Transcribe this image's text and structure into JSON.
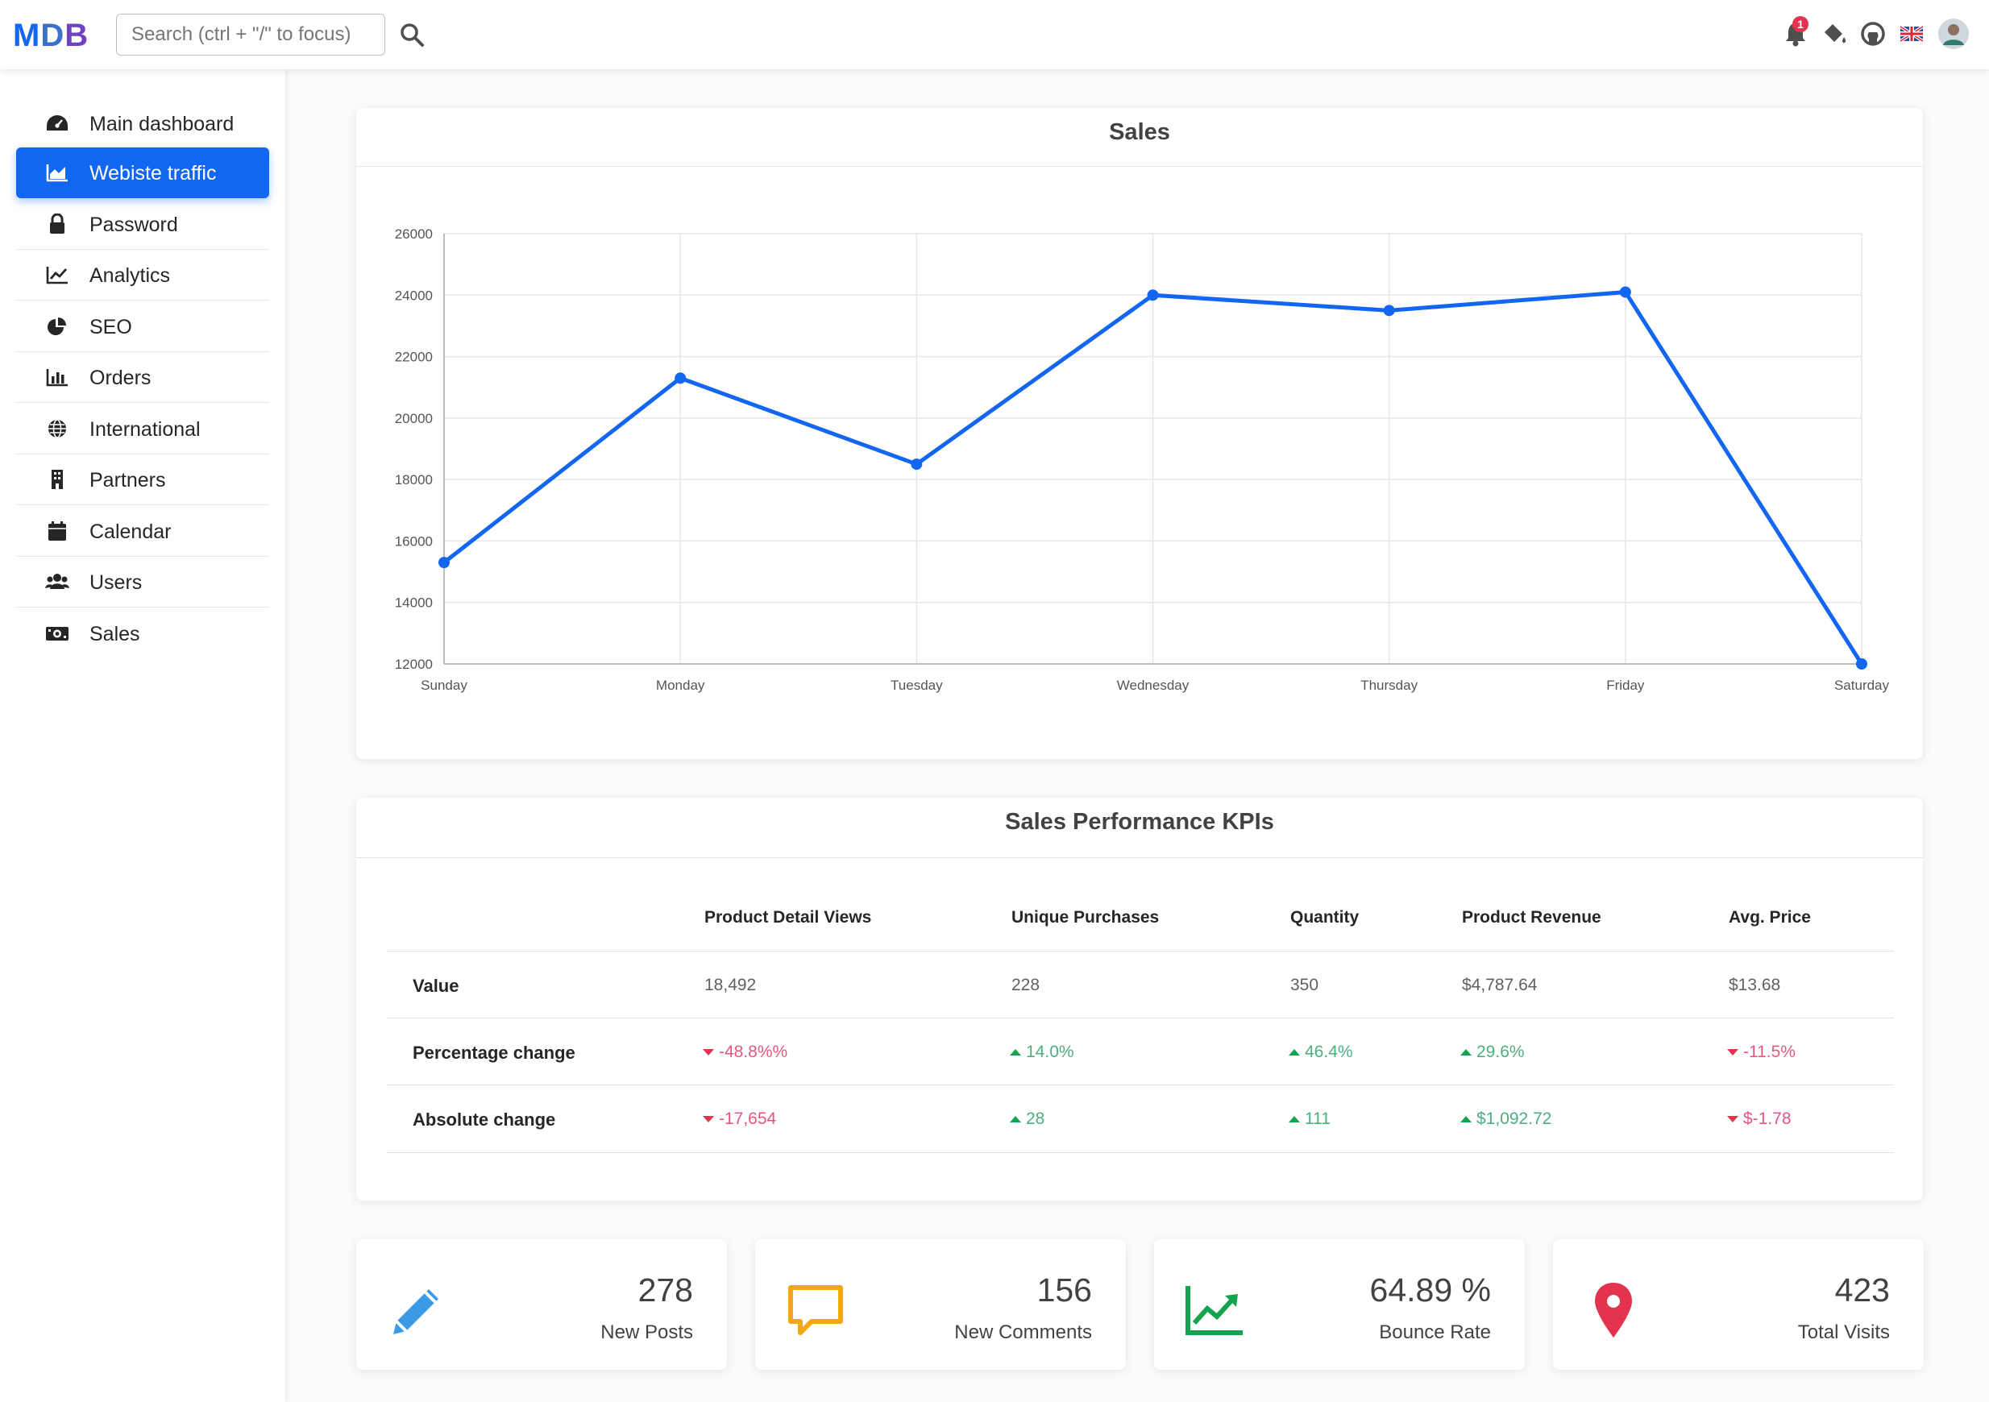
{
  "navbar": {
    "logo": {
      "m": "M",
      "d": "D",
      "b": "B"
    },
    "search_placeholder": "Search (ctrl + \"/\" to focus)",
    "notification_count": "1",
    "icons": [
      "bell-icon",
      "paint-bucket-icon",
      "github-icon",
      "uk-flag-icon",
      "avatar"
    ]
  },
  "sidebar": {
    "items": [
      {
        "label": "Main dashboard",
        "icon": "gauge-icon"
      },
      {
        "label": "Webiste traffic",
        "icon": "area-chart-icon",
        "active": true
      },
      {
        "label": "Password",
        "icon": "lock-icon"
      },
      {
        "label": "Analytics",
        "icon": "line-chart-icon"
      },
      {
        "label": "SEO",
        "icon": "pie-chart-icon"
      },
      {
        "label": "Orders",
        "icon": "bar-chart-icon"
      },
      {
        "label": "International",
        "icon": "globe-icon"
      },
      {
        "label": "Partners",
        "icon": "building-icon"
      },
      {
        "label": "Calendar",
        "icon": "calendar-icon"
      },
      {
        "label": "Users",
        "icon": "users-icon"
      },
      {
        "label": "Sales",
        "icon": "money-bill-icon"
      }
    ]
  },
  "sales_card": {
    "title": "Sales"
  },
  "chart_data": {
    "type": "line",
    "x": [
      "Sunday",
      "Monday",
      "Tuesday",
      "Wednesday",
      "Thursday",
      "Friday",
      "Saturday"
    ],
    "y_ticks": [
      "26000",
      "24000",
      "22000",
      "20000",
      "18000",
      "16000",
      "14000",
      "12000"
    ],
    "series": [
      {
        "values": [
          15300,
          21300,
          18500,
          24000,
          23500,
          24100,
          12000
        ]
      }
    ],
    "ylim": [
      12000,
      26000
    ],
    "grid": true,
    "color": "#1266f1"
  },
  "kpi_card": {
    "title": "Sales Performance KPIs",
    "columns": [
      "Product Detail Views",
      "Unique Purchases",
      "Quantity",
      "Product Revenue",
      "Avg. Price"
    ],
    "rows": [
      {
        "label": "Value",
        "cells": [
          {
            "text": "18,492"
          },
          {
            "text": "228"
          },
          {
            "text": "350"
          },
          {
            "text": "$4,787.64"
          },
          {
            "text": "$13.68"
          }
        ]
      },
      {
        "label": "Percentage change",
        "cells": [
          {
            "text": "-48.8%%",
            "trend": "down"
          },
          {
            "text": "14.0%",
            "trend": "up"
          },
          {
            "text": "46.4%",
            "trend": "up"
          },
          {
            "text": "29.6%",
            "trend": "up"
          },
          {
            "text": "-11.5%",
            "trend": "down"
          }
        ]
      },
      {
        "label": "Absolute change",
        "cells": [
          {
            "text": "-17,654",
            "trend": "down"
          },
          {
            "text": "28",
            "trend": "up"
          },
          {
            "text": "111",
            "trend": "up"
          },
          {
            "text": "$1,092.72",
            "trend": "up"
          },
          {
            "text": "$-1.78",
            "trend": "down"
          }
        ]
      }
    ]
  },
  "stats": [
    {
      "value": "278",
      "label": "New Posts",
      "icon": "pencil-icon",
      "color": "#3b9be8"
    },
    {
      "value": "156",
      "label": "New Comments",
      "icon": "comment-icon",
      "color": "#f3a712"
    },
    {
      "value": "64.89 %",
      "label": "Bounce Rate",
      "icon": "trend-up-icon",
      "color": "#14a44d"
    },
    {
      "value": "423",
      "label": "Total Visits",
      "icon": "map-marker-icon",
      "color": "#e4334e"
    }
  ]
}
